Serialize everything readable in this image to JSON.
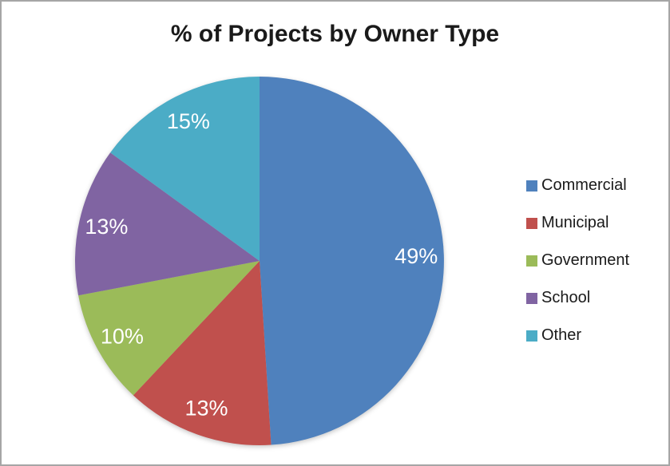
{
  "chart_data": {
    "type": "pie",
    "title": "% of Projects by Owner Type",
    "categories": [
      "Commercial",
      "Municipal",
      "Government",
      "School",
      "Other"
    ],
    "values": [
      49,
      13,
      10,
      13,
      15
    ],
    "data_labels": [
      "49%",
      "13%",
      "10%",
      "13%",
      "15%"
    ],
    "colors": [
      "#4F81BD",
      "#C0504D",
      "#9BBB59",
      "#8064A2",
      "#4BACC6"
    ],
    "label_color": "#FFFFFF",
    "legend_position": "right",
    "start_angle_deg": 0,
    "direction": "clockwise",
    "frame_border_color": "#A6A6A6",
    "background_color": "#FFFFFF"
  }
}
